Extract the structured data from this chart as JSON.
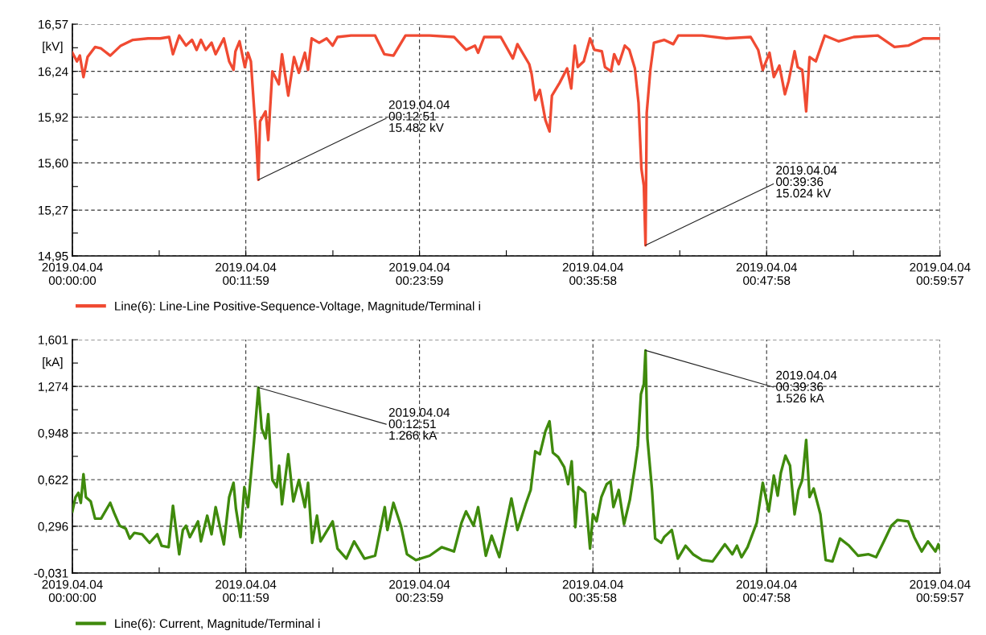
{
  "chart_data": [
    {
      "type": "line",
      "ylabel": "[kV]",
      "legend": "bottom",
      "grid": true,
      "line_style": "solid",
      "marker": "none",
      "xlim": [
        "2019-04-04T00:00:00",
        "2019-04-04T00:59:57"
      ],
      "xticks": [
        {
          "value": "2019-04-04T00:00:00",
          "label": "2019.04.04\n00:00:00"
        },
        {
          "value": "2019-04-04T00:06:00",
          "label": null
        },
        {
          "value": "2019-04-04T00:11:59",
          "label": "2019.04.04\n00:11:59"
        },
        {
          "value": "2019-04-04T00:18:00",
          "label": null
        },
        {
          "value": "2019-04-04T00:23:59",
          "label": "2019.04.04\n00:23:59"
        },
        {
          "value": "2019-04-04T00:29:59",
          "label": null
        },
        {
          "value": "2019-04-04T00:35:58",
          "label": "2019.04.04\n00:35:58"
        },
        {
          "value": "2019-04-04T00:41:58",
          "label": null
        },
        {
          "value": "2019-04-04T00:47:58",
          "label": "2019.04.04\n00:47:58"
        },
        {
          "value": "2019-04-04T00:53:58",
          "label": null
        },
        {
          "value": "2019-04-04T00:59:57",
          "label": "2019.04.04\n00:59:57"
        }
      ],
      "ylim": [
        14.95,
        16.57
      ],
      "yticks": [
        {
          "value": 14.95,
          "label": "14,95"
        },
        {
          "value": 15.11,
          "label": null
        },
        {
          "value": 15.27,
          "label": "15,27"
        },
        {
          "value": 15.435,
          "label": null
        },
        {
          "value": 15.6,
          "label": "15,60"
        },
        {
          "value": 15.76,
          "label": null
        },
        {
          "value": 15.92,
          "label": "15,92"
        },
        {
          "value": 16.08,
          "label": null
        },
        {
          "value": 16.24,
          "label": "16,24"
        },
        {
          "value": 16.405,
          "label": null
        },
        {
          "value": 16.57,
          "label": "16,57"
        }
      ],
      "annotations": [
        {
          "text": "2019.04.04\n00:12:51\n15.482 kV",
          "x": "2019-04-04T00:12:51",
          "y": 15.482
        },
        {
          "text": "2019.04.04\n00:39:36\n15.024 kV",
          "x": "2019-04-04T00:39:36",
          "y": 15.024
        }
      ],
      "series": [
        {
          "name": "Line(6): Line-Line Positive-Sequence-Voltage, Magnitude/Terminal i",
          "color": "#f04a32",
          "x": [
            "2019-04-04T00:00:00",
            "2019-04-04T00:00:19",
            "2019-04-04T00:00:31",
            "2019-04-04T00:00:46",
            "2019-04-04T00:01:03",
            "2019-04-04T00:01:34",
            "2019-04-04T00:01:59",
            "2019-04-04T00:02:37",
            "2019-04-04T00:03:21",
            "2019-04-04T00:04:11",
            "2019-04-04T00:05:14",
            "2019-04-04T00:06:04",
            "2019-04-04T00:06:41",
            "2019-04-04T00:06:57",
            "2019-04-04T00:07:23",
            "2019-04-04T00:07:51",
            "2019-04-04T00:08:16",
            "2019-04-04T00:08:35",
            "2019-04-04T00:08:53",
            "2019-04-04T00:09:13",
            "2019-04-04T00:09:37",
            "2019-04-04T00:09:54",
            "2019-04-04T00:10:28",
            "2019-04-04T00:10:50",
            "2019-04-04T00:11:08",
            "2019-04-04T00:11:16",
            "2019-04-04T00:11:33",
            "2019-04-04T00:11:55",
            "2019-04-04T00:12:08",
            "2019-04-04T00:12:20",
            "2019-04-04T00:12:33",
            "2019-04-04T00:12:41",
            "2019-04-04T00:12:51",
            "2019-04-04T00:12:58",
            "2019-04-04T00:13:21",
            "2019-04-04T00:13:32",
            "2019-04-04T00:13:49",
            "2019-04-04T00:14:16",
            "2019-04-04T00:14:29",
            "2019-04-04T00:14:55",
            "2019-04-04T00:15:19",
            "2019-04-04T00:15:39",
            "2019-04-04T00:16:04",
            "2019-04-04T00:16:17",
            "2019-04-04T00:16:32",
            "2019-04-04T00:17:03",
            "2019-04-04T00:17:34",
            "2019-04-04T00:17:59",
            "2019-04-04T00:18:19",
            "2019-04-04T00:19:15",
            "2019-04-04T00:20:55",
            "2019-04-04T00:21:33",
            "2019-04-04T00:22:11",
            "2019-04-04T00:23:01",
            "2019-04-04T00:24:41",
            "2019-04-04T00:26:22",
            "2019-04-04T00:27:12",
            "2019-04-04T00:27:49",
            "2019-04-04T00:28:02",
            "2019-04-04T00:28:27",
            "2019-04-04T00:29:36",
            "2019-04-04T00:30:26",
            "2019-04-04T00:30:45",
            "2019-04-04T00:31:34",
            "2019-04-04T00:31:44",
            "2019-04-04T00:31:59",
            "2019-04-04T00:32:18",
            "2019-04-04T00:32:41",
            "2019-04-04T00:32:58",
            "2019-04-04T00:33:08",
            "2019-04-04T00:33:40",
            "2019-04-04T00:34:11",
            "2019-04-04T00:34:28",
            "2019-04-04T00:34:43",
            "2019-04-04T00:34:55",
            "2019-04-04T00:35:20",
            "2019-04-04T00:35:46",
            "2019-04-04T00:36:04",
            "2019-04-04T00:36:35",
            "2019-04-04T00:36:48",
            "2019-04-04T00:37:13",
            "2019-04-04T00:37:26",
            "2019-04-04T00:37:45",
            "2019-04-04T00:38:10",
            "2019-04-04T00:38:29",
            "2019-04-04T00:38:52",
            "2019-04-04T00:39:07",
            "2019-04-04T00:39:19",
            "2019-04-04T00:39:29",
            "2019-04-04T00:39:36",
            "2019-04-04T00:39:41",
            "2019-04-04T00:39:56",
            "2019-04-04T00:40:11",
            "2019-04-04T00:40:53",
            "2019-04-04T00:41:31",
            "2019-04-04T00:41:52",
            "2019-04-04T00:43:31",
            "2019-04-04T00:45:11",
            "2019-04-04T00:46:52",
            "2019-04-04T00:47:23",
            "2019-04-04T00:47:42",
            "2019-04-04T00:48:10",
            "2019-04-04T00:48:28",
            "2019-04-04T00:48:51",
            "2019-04-04T00:49:14",
            "2019-04-04T00:49:29",
            "2019-04-04T00:49:54",
            "2019-04-04T00:50:07",
            "2019-04-04T00:50:26",
            "2019-04-04T00:50:42",
            "2019-04-04T00:50:56",
            "2019-04-04T00:51:22",
            "2019-04-04T00:51:59",
            "2019-04-04T00:52:56",
            "2019-04-04T00:53:59",
            "2019-04-04T00:55:39",
            "2019-04-04T00:56:48",
            "2019-04-04T00:57:45",
            "2019-04-04T00:58:47",
            "2019-04-04T00:59:57"
          ],
          "values": [
            16.37,
            16.31,
            16.35,
            16.2,
            16.34,
            16.41,
            16.4,
            16.35,
            16.42,
            16.46,
            16.47,
            16.47,
            16.48,
            16.36,
            16.49,
            16.42,
            16.46,
            16.39,
            16.46,
            16.39,
            16.44,
            16.36,
            16.47,
            16.31,
            16.25,
            16.38,
            16.45,
            16.27,
            16.37,
            16.31,
            15.99,
            15.8,
            15.482,
            15.89,
            15.96,
            15.76,
            16.24,
            16.15,
            16.36,
            16.07,
            16.34,
            16.23,
            16.37,
            16.25,
            16.47,
            16.44,
            16.47,
            16.42,
            16.48,
            16.49,
            16.49,
            16.36,
            16.35,
            16.49,
            16.49,
            16.48,
            16.39,
            16.42,
            16.37,
            16.48,
            16.48,
            16.33,
            16.43,
            16.29,
            16.22,
            16.04,
            16.11,
            15.9,
            15.82,
            16.07,
            16.16,
            16.26,
            16.12,
            16.42,
            16.27,
            16.31,
            16.47,
            16.39,
            16.38,
            16.27,
            16.24,
            16.36,
            16.29,
            16.42,
            16.39,
            16.26,
            16.02,
            15.56,
            15.44,
            15.024,
            15.95,
            16.25,
            16.44,
            16.46,
            16.43,
            16.49,
            16.49,
            16.47,
            16.48,
            16.39,
            16.25,
            16.37,
            16.2,
            16.28,
            16.08,
            16.17,
            16.38,
            16.27,
            16.25,
            15.96,
            16.34,
            16.31,
            16.49,
            16.45,
            16.48,
            16.49,
            16.41,
            16.42,
            16.47,
            16.47
          ]
        }
      ]
    },
    {
      "type": "line",
      "ylabel": "[kA]",
      "legend": "bottom",
      "grid": true,
      "line_style": "solid",
      "marker": "none",
      "xlim": [
        "2019-04-04T00:00:00",
        "2019-04-04T00:59:57"
      ],
      "xticks": [
        {
          "value": "2019-04-04T00:00:00",
          "label": "2019.04.04\n00:00:00"
        },
        {
          "value": "2019-04-04T00:06:00",
          "label": null
        },
        {
          "value": "2019-04-04T00:11:59",
          "label": "2019.04.04\n00:11:59"
        },
        {
          "value": "2019-04-04T00:18:00",
          "label": null
        },
        {
          "value": "2019-04-04T00:23:59",
          "label": "2019.04.04\n00:23:59"
        },
        {
          "value": "2019-04-04T00:29:59",
          "label": null
        },
        {
          "value": "2019-04-04T00:35:58",
          "label": "2019.04.04\n00:35:58"
        },
        {
          "value": "2019-04-04T00:41:58",
          "label": null
        },
        {
          "value": "2019-04-04T00:47:58",
          "label": "2019.04.04\n00:47:58"
        },
        {
          "value": "2019-04-04T00:53:58",
          "label": null
        },
        {
          "value": "2019-04-04T00:59:57",
          "label": "2019.04.04\n00:59:57"
        }
      ],
      "ylim": [
        -0.031,
        1.601
      ],
      "yticks": [
        {
          "value": -0.031,
          "label": "-0,031"
        },
        {
          "value": 0.1325,
          "label": null
        },
        {
          "value": 0.296,
          "label": "0,296"
        },
        {
          "value": 0.459,
          "label": null
        },
        {
          "value": 0.622,
          "label": "0,622"
        },
        {
          "value": 0.785,
          "label": null
        },
        {
          "value": 0.948,
          "label": "0,948"
        },
        {
          "value": 1.111,
          "label": null
        },
        {
          "value": 1.274,
          "label": "1,274"
        },
        {
          "value": 1.4375,
          "label": null
        },
        {
          "value": 1.601,
          "label": "1,601"
        }
      ],
      "annotations": [
        {
          "text": "2019.04.04\n00:12:51\n1.266 kA",
          "x": "2019-04-04T00:12:51",
          "y": 1.266
        },
        {
          "text": "2019.04.04\n00:39:36\n1.526 kA",
          "x": "2019-04-04T00:39:36",
          "y": 1.526
        }
      ],
      "series": [
        {
          "name": "Line(6): Current, Magnitude/Terminal i",
          "color": "#3f8a0c",
          "x": [
            "2019-04-04T00:00:00",
            "2019-04-04T00:00:13",
            "2019-04-04T00:00:25",
            "2019-04-04T00:00:35",
            "2019-04-04T00:00:46",
            "2019-04-04T00:00:56",
            "2019-04-04T00:01:16",
            "2019-04-04T00:01:34",
            "2019-04-04T00:01:59",
            "2019-04-04T00:02:37",
            "2019-04-04T00:02:53",
            "2019-04-04T00:03:16",
            "2019-04-04T00:03:41",
            "2019-04-04T00:03:58",
            "2019-04-04T00:04:17",
            "2019-04-04T00:04:49",
            "2019-04-04T00:05:20",
            "2019-04-04T00:05:52",
            "2019-04-04T00:06:10",
            "2019-04-04T00:06:39",
            "2019-04-04T00:06:57",
            "2019-04-04T00:07:23",
            "2019-04-04T00:07:38",
            "2019-04-04T00:07:51",
            "2019-04-04T00:08:07",
            "2019-04-04T00:08:41",
            "2019-04-04T00:08:53",
            "2019-04-04T00:09:19",
            "2019-04-04T00:09:37",
            "2019-04-04T00:09:54",
            "2019-04-04T00:10:28",
            "2019-04-04T00:10:50",
            "2019-04-04T00:11:08",
            "2019-04-04T00:11:18",
            "2019-04-04T00:11:37",
            "2019-04-04T00:11:53",
            "2019-04-04T00:12:08",
            "2019-04-04T00:12:33",
            "2019-04-04T00:12:51",
            "2019-04-04T00:13:05",
            "2019-04-04T00:13:21",
            "2019-04-04T00:13:32",
            "2019-04-04T00:13:49",
            "2019-04-04T00:14:07",
            "2019-04-04T00:14:17",
            "2019-04-04T00:14:29",
            "2019-04-04T00:14:55",
            "2019-04-04T00:15:16",
            "2019-04-04T00:15:39",
            "2019-04-04T00:16:04",
            "2019-04-04T00:16:17",
            "2019-04-04T00:16:34",
            "2019-04-04T00:16:54",
            "2019-04-04T00:17:09",
            "2019-04-04T00:17:59",
            "2019-04-04T00:18:19",
            "2019-04-04T00:18:56",
            "2019-04-04T00:19:28",
            "2019-04-04T00:20:11",
            "2019-04-04T00:20:55",
            "2019-04-04T00:21:35",
            "2019-04-04T00:21:46",
            "2019-04-04T00:22:11",
            "2019-04-04T00:22:42",
            "2019-04-04T00:23:07",
            "2019-04-04T00:23:44",
            "2019-04-04T00:24:41",
            "2019-04-04T00:25:31",
            "2019-04-04T00:26:22",
            "2019-04-04T00:26:53",
            "2019-04-04T00:27:12",
            "2019-04-04T00:27:43",
            "2019-04-04T00:28:02",
            "2019-04-04T00:28:34",
            "2019-04-04T00:28:58",
            "2019-04-04T00:29:30",
            "2019-04-04T00:30:20",
            "2019-04-04T00:30:45",
            "2019-04-04T00:31:19",
            "2019-04-04T00:31:40",
            "2019-04-04T00:31:59",
            "2019-04-04T00:32:18",
            "2019-04-04T00:32:41",
            "2019-04-04T00:32:58",
            "2019-04-04T00:33:12",
            "2019-04-04T00:33:34",
            "2019-04-04T00:33:59",
            "2019-04-04T00:34:15",
            "2019-04-04T00:34:30",
            "2019-04-04T00:34:45",
            "2019-04-04T00:34:58",
            "2019-04-04T00:35:26",
            "2019-04-04T00:35:46",
            "2019-04-04T00:35:58",
            "2019-04-04T00:36:13",
            "2019-04-04T00:36:33",
            "2019-04-04T00:36:55",
            "2019-04-04T00:37:11",
            "2019-04-04T00:37:23",
            "2019-04-04T00:37:45",
            "2019-04-04T00:38:07",
            "2019-04-04T00:38:31",
            "2019-04-04T00:38:52",
            "2019-04-04T00:39:04",
            "2019-04-04T00:39:17",
            "2019-04-04T00:39:29",
            "2019-04-04T00:39:36",
            "2019-04-04T00:39:44",
            "2019-04-04T00:40:03",
            "2019-04-04T00:40:16",
            "2019-04-04T00:40:41",
            "2019-04-04T00:40:53",
            "2019-04-04T00:41:25",
            "2019-04-04T00:41:50",
            "2019-04-04T00:42:22",
            "2019-04-04T00:42:53",
            "2019-04-04T00:43:31",
            "2019-04-04T00:44:14",
            "2019-04-04T00:45:05",
            "2019-04-04T00:45:36",
            "2019-04-04T00:45:55",
            "2019-04-04T00:46:14",
            "2019-04-04T00:46:39",
            "2019-04-04T00:47:17",
            "2019-04-04T00:47:42",
            "2019-04-04T00:48:07",
            "2019-04-04T00:48:28",
            "2019-04-04T00:48:44",
            "2019-04-04T00:48:57",
            "2019-04-04T00:49:16",
            "2019-04-04T00:49:35",
            "2019-04-04T00:49:54",
            "2019-04-04T00:50:10",
            "2019-04-04T00:50:26",
            "2019-04-04T00:50:42",
            "2019-04-04T00:50:56",
            "2019-04-04T00:51:13",
            "2019-04-04T00:51:41",
            "2019-04-04T00:52:03",
            "2019-04-04T00:52:31",
            "2019-04-04T00:53:02",
            "2019-04-04T00:53:40",
            "2019-04-04T00:54:17",
            "2019-04-04T00:55:01",
            "2019-04-04T00:55:32",
            "2019-04-04T00:56:04",
            "2019-04-04T00:56:35",
            "2019-04-04T00:57:01",
            "2019-04-04T00:57:45",
            "2019-04-04T00:58:10",
            "2019-04-04T00:58:41",
            "2019-04-04T00:59:07",
            "2019-04-04T00:59:38",
            "2019-04-04T00:59:50",
            "2019-04-04T00:59:57"
          ],
          "values": [
            0.4,
            0.5,
            0.53,
            0.46,
            0.66,
            0.5,
            0.47,
            0.35,
            0.35,
            0.46,
            0.39,
            0.3,
            0.28,
            0.21,
            0.25,
            0.24,
            0.18,
            0.24,
            0.16,
            0.15,
            0.44,
            0.1,
            0.27,
            0.3,
            0.22,
            0.33,
            0.19,
            0.37,
            0.24,
            0.43,
            0.17,
            0.5,
            0.6,
            0.42,
            0.22,
            0.57,
            0.43,
            0.89,
            1.266,
            0.98,
            0.91,
            1.08,
            0.62,
            0.57,
            0.72,
            0.45,
            0.8,
            0.47,
            0.62,
            0.43,
            0.6,
            0.18,
            0.37,
            0.19,
            0.33,
            0.14,
            0.07,
            0.19,
            0.07,
            0.09,
            0.43,
            0.27,
            0.46,
            0.3,
            0.1,
            0.06,
            0.09,
            0.15,
            0.12,
            0.32,
            0.4,
            0.3,
            0.43,
            0.09,
            0.23,
            0.08,
            0.49,
            0.27,
            0.45,
            0.55,
            0.82,
            0.8,
            0.96,
            1.03,
            0.81,
            0.78,
            0.71,
            0.59,
            0.75,
            0.29,
            0.57,
            0.53,
            0.14,
            0.38,
            0.33,
            0.5,
            0.59,
            0.61,
            0.43,
            0.55,
            0.31,
            0.48,
            0.71,
            0.86,
            1.22,
            1.29,
            1.526,
            0.91,
            0.55,
            0.21,
            0.18,
            0.22,
            0.27,
            0.07,
            0.16,
            0.1,
            0.06,
            0.05,
            0.17,
            0.1,
            0.16,
            0.08,
            0.15,
            0.32,
            0.6,
            0.4,
            0.65,
            0.51,
            0.67,
            0.79,
            0.72,
            0.38,
            0.55,
            0.62,
            0.9,
            0.5,
            0.56,
            0.38,
            0.06,
            0.05,
            0.21,
            0.16,
            0.09,
            0.1,
            0.08,
            0.19,
            0.3,
            0.34,
            0.33,
            0.22,
            0.12,
            0.19,
            0.12,
            0.17,
            0.135
          ]
        }
      ]
    }
  ]
}
